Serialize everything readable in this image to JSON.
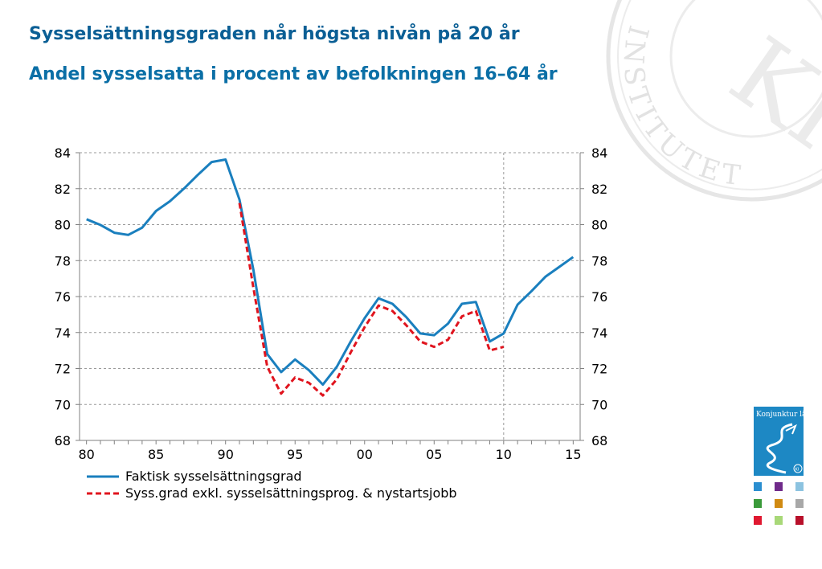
{
  "title": "Sysselsättningsgraden når högsta nivån på 20 år",
  "subtitle": "Andel sysselsatta i procent av befolkningen 16–64 år",
  "seal": {
    "text": "INSTITUTET",
    "monogram": "KI"
  },
  "cover": {
    "text": "Konjunktur läget",
    "badge": "KI"
  },
  "chart_data": {
    "type": "line",
    "x": [
      1980,
      1981,
      1982,
      1983,
      1984,
      1985,
      1986,
      1987,
      1988,
      1989,
      1990,
      1991,
      1992,
      1993,
      1994,
      1995,
      1996,
      1997,
      1998,
      1999,
      2000,
      2001,
      2002,
      2003,
      2004,
      2005,
      2006,
      2007,
      2008,
      2009,
      2010,
      2011,
      2012,
      2013,
      2014,
      2015
    ],
    "xticks": [
      1980,
      1985,
      1990,
      1995,
      2000,
      2005,
      2010,
      2015
    ],
    "xtick_labels": [
      "80",
      "85",
      "90",
      "95",
      "00",
      "05",
      "10",
      "15"
    ],
    "xlim": [
      1979.5,
      2015.5
    ],
    "ylim": [
      68,
      84
    ],
    "yticks": [
      68,
      70,
      72,
      74,
      76,
      78,
      80,
      82,
      84
    ],
    "grid": true,
    "vline_x": 2010,
    "legend_position": "bottom-left",
    "series": [
      {
        "name": "Faktisk sysselsättningsgrad",
        "color": "#1a7fbe",
        "dash": "solid",
        "values": [
          80.3,
          79.98,
          79.55,
          79.43,
          79.83,
          80.76,
          81.3,
          82.0,
          82.76,
          83.48,
          83.62,
          81.4,
          77.5,
          72.8,
          71.8,
          72.5,
          71.9,
          71.1,
          72.1,
          73.5,
          74.8,
          75.9,
          75.6,
          74.85,
          73.95,
          73.85,
          74.5,
          75.6,
          75.7,
          73.5,
          73.95,
          75.55,
          76.3,
          77.1,
          77.65,
          78.2
        ]
      },
      {
        "name": "Syss.grad exkl. sysselsättningsprog. & nystartsjobb",
        "color": "#e0141e",
        "dash": "dashed",
        "values": [
          null,
          null,
          null,
          null,
          null,
          null,
          null,
          null,
          null,
          null,
          null,
          81.2,
          76.5,
          72.1,
          70.6,
          71.5,
          71.2,
          70.5,
          71.4,
          72.9,
          74.3,
          75.5,
          75.2,
          74.4,
          73.5,
          73.2,
          73.6,
          74.9,
          75.2,
          73.0,
          73.2,
          null,
          null,
          null,
          null,
          null
        ]
      }
    ]
  }
}
